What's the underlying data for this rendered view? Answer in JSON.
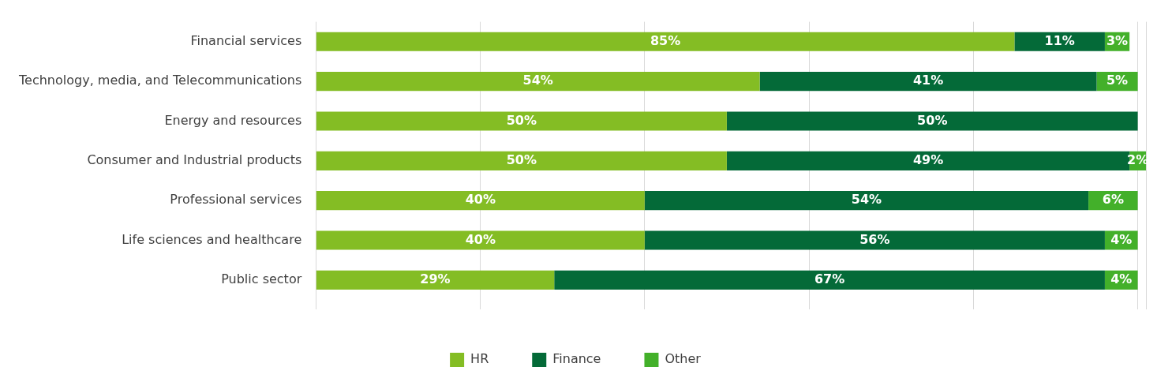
{
  "chart_data": {
    "type": "bar",
    "orientation": "horizontal",
    "stacked": true,
    "categories": [
      "Financial services",
      "Technology, media, and Telecommunications",
      "Energy and resources",
      "Consumer and Industrial products",
      "Professional services",
      "Life sciences and healthcare",
      "Public sector"
    ],
    "series": [
      {
        "name": "HR",
        "color": "#84bd24",
        "values": [
          85,
          54,
          50,
          50,
          40,
          40,
          29
        ],
        "value_labels": [
          "85%",
          "54%",
          "50%",
          "50%",
          "40%",
          "40%",
          "29%"
        ]
      },
      {
        "name": "Finance",
        "color": "#046a38",
        "values": [
          11,
          41,
          50,
          49,
          54,
          56,
          67
        ],
        "value_labels": [
          "11%",
          "41%",
          "50%",
          "49%",
          "54%",
          "56%",
          "67%"
        ]
      },
      {
        "name": "Other",
        "color": "#43b02a",
        "values": [
          3,
          5,
          null,
          2,
          6,
          4,
          4
        ],
        "value_labels": [
          "3%",
          "5%",
          null,
          "2%",
          "6%",
          "4%",
          "4%"
        ]
      }
    ],
    "tick_labels": "y",
    "grid": "x",
    "legend": "bottom"
  }
}
